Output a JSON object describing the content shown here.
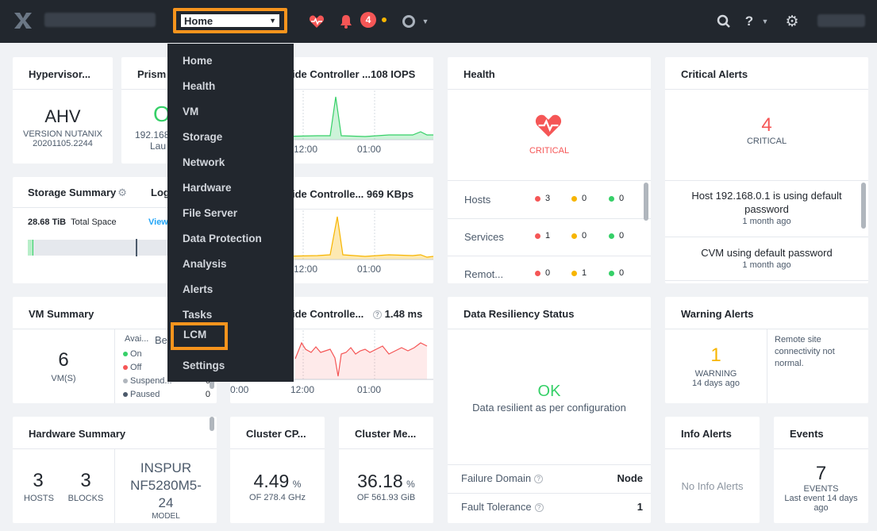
{
  "topbar": {
    "nav_selected": "Home",
    "alert_count": "4"
  },
  "menu": {
    "items": [
      "Home",
      "Health",
      "VM",
      "Storage",
      "Network",
      "Hardware",
      "File Server",
      "Data Protection",
      "Analysis",
      "Alerts",
      "Tasks",
      "LCM",
      "Settings"
    ]
  },
  "hypervisor": {
    "title": "Hypervisor...",
    "name": "AHV",
    "version_line1": "VERSION NUTANIX",
    "version_line2": "20201105.2244"
  },
  "prism": {
    "title": "Prism",
    "status_glyph": "O",
    "ip": "192.168",
    "sub": "Lau"
  },
  "iops": {
    "title": "ide Controller ...108 IOPS",
    "x_ticks": [
      "12:00",
      "01:00"
    ],
    "color": "#36d068"
  },
  "bandwidth": {
    "title": "ide Controlle... 969 KBps",
    "x_ticks": [
      "12:00",
      "01:00"
    ],
    "color": "#f7b500"
  },
  "latency": {
    "title": "ide Controlle...",
    "value": "1.48 ms",
    "x_ticks": [
      "0:00",
      "12:00",
      "01:00"
    ],
    "color": "#f55656"
  },
  "storage": {
    "title": "Storage Summary",
    "tab2": "Log",
    "total_value": "28.68 TiB",
    "total_label": "Total Space",
    "view_link": "View",
    "used_fraction": 0.03
  },
  "vm_summary": {
    "title": "VM Summary",
    "count": "6",
    "count_label": "VM(S)",
    "col_title": "Avai...",
    "col2_title": "Be",
    "states": [
      {
        "label": "On",
        "color": "#36d068",
        "value": ""
      },
      {
        "label": "Off",
        "color": "#f55656",
        "value": ""
      },
      {
        "label": "Suspend...",
        "color": "#b0b6bd",
        "value": "0"
      },
      {
        "label": "Paused",
        "color": "#4c5a6b",
        "value": "0"
      }
    ]
  },
  "hardware": {
    "title": "Hardware Summary",
    "hosts": "3",
    "hosts_label": "HOSTS",
    "blocks": "3",
    "blocks_label": "BLOCKS",
    "model_l1": "INSPUR",
    "model_l2": "NF5280M5-",
    "model_l3": "24",
    "model_label": "MODEL"
  },
  "cpu": {
    "title": "Cluster CP...",
    "value": "4.49",
    "unit": "%",
    "sub": "OF 278.4 GHz"
  },
  "mem": {
    "title": "Cluster Me...",
    "value": "36.18",
    "unit": "%",
    "sub": "OF 561.93 GiB"
  },
  "health": {
    "title": "Health",
    "status": "CRITICAL",
    "rows": [
      {
        "label": "Hosts",
        "red": "3",
        "yellow": "0",
        "green": "0"
      },
      {
        "label": "Services",
        "red": "1",
        "yellow": "0",
        "green": "0"
      },
      {
        "label": "Remot...",
        "red": "0",
        "yellow": "1",
        "green": "0"
      }
    ]
  },
  "resiliency": {
    "title": "Data Resiliency Status",
    "status": "OK",
    "desc": "Data resilient as per configuration",
    "failure_domain_label": "Failure Domain",
    "failure_domain_value": "Node",
    "fault_tolerance_label": "Fault Tolerance",
    "fault_tolerance_value": "1"
  },
  "critical": {
    "title": "Critical Alerts",
    "count": "4",
    "count_label": "CRITICAL",
    "alerts": [
      {
        "text": "Host 192.168.0.1 is using default password",
        "time": "1 month ago"
      },
      {
        "text": "CVM using default password",
        "time": "1 month ago"
      }
    ]
  },
  "warning": {
    "title": "Warning Alerts",
    "count": "1",
    "count_label": "WARNING",
    "time": "14 days ago",
    "detail": "Remote site connectivity not normal."
  },
  "info": {
    "title": "Info Alerts",
    "empty": "No Info Alerts"
  },
  "events": {
    "title": "Events",
    "count": "7",
    "count_label": "EVENTS",
    "sub": "Last event 14 days ago"
  }
}
